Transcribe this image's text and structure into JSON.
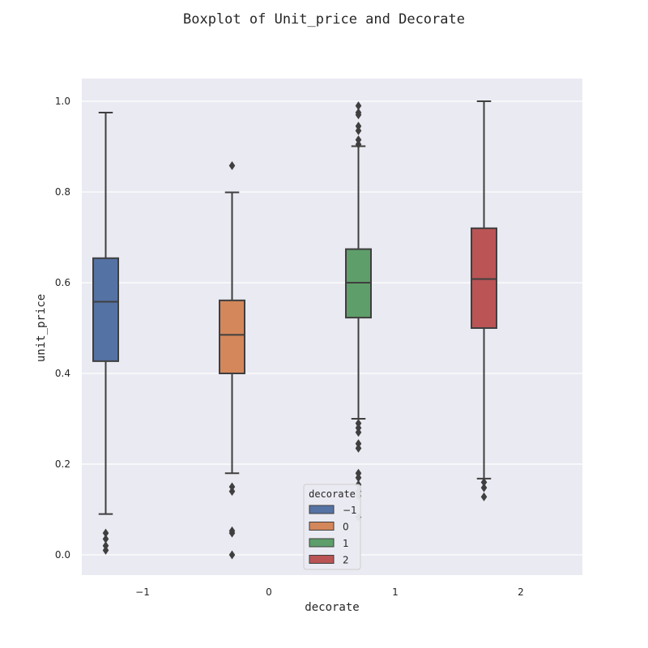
{
  "chart_data": {
    "type": "boxplot",
    "title": "Boxplot of Unit_price and Decorate",
    "xlabel": "decorate",
    "ylabel": "unit_price",
    "ylim": [
      -0.045,
      1.05
    ],
    "y_ticks": [
      "0.0",
      "0.2",
      "0.4",
      "0.6",
      "0.8",
      "1.0"
    ],
    "y_tick_values": [
      0.0,
      0.2,
      0.4,
      0.6,
      0.8,
      1.0
    ],
    "categories": [
      "−1",
      "0",
      "1",
      "2"
    ],
    "grid": true,
    "legend": {
      "title": "decorate",
      "placement": "lower-center",
      "entries": [
        "−1",
        "0",
        "1",
        "2"
      ]
    },
    "colors": {
      "background": "#EAEAF2",
      "grid": "#FFFFFF",
      "line": "#3F3F3F",
      "series": [
        "#5572A4",
        "#D3875A",
        "#5E9E6A",
        "#BB5455"
      ]
    },
    "series": [
      {
        "name": "−1",
        "whisker_low": 0.09,
        "q1": 0.427,
        "median": 0.558,
        "q3": 0.654,
        "whisker_high": 0.975,
        "outliers": [
          0.01,
          0.02,
          0.035,
          0.048
        ]
      },
      {
        "name": "0",
        "whisker_low": 0.18,
        "q1": 0.4,
        "median": 0.485,
        "q3": 0.561,
        "whisker_high": 0.799,
        "outliers": [
          0.858,
          0.15,
          0.14,
          0.053,
          0.048,
          0.0
        ]
      },
      {
        "name": "1",
        "whisker_low": 0.3,
        "q1": 0.523,
        "median": 0.6,
        "q3": 0.674,
        "whisker_high": 0.901,
        "outliers": [
          0.99,
          0.975,
          0.97,
          0.945,
          0.935,
          0.915,
          0.905,
          0.29,
          0.28,
          0.27,
          0.245,
          0.235,
          0.18,
          0.17,
          0.155,
          0.14,
          0.13,
          0.083
        ]
      },
      {
        "name": "2",
        "whisker_low": 0.168,
        "q1": 0.5,
        "median": 0.608,
        "q3": 0.72,
        "whisker_high": 1.0,
        "outliers": [
          0.16,
          0.148,
          0.128
        ]
      }
    ]
  }
}
